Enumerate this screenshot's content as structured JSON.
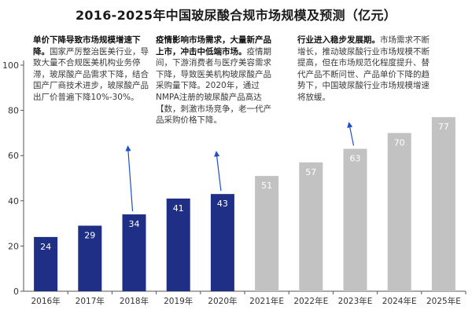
{
  "chart_data": {
    "type": "bar",
    "title": "2016-2025年中国玻尿酸合规市场规模及预测（亿元）",
    "categories": [
      "2016年",
      "2017年",
      "2018年",
      "2019年",
      "2020年",
      "2021年E",
      "2022年E",
      "2023年E",
      "2024年E",
      "2025年E"
    ],
    "values": [
      24,
      29,
      34,
      41,
      43,
      51,
      57,
      63,
      70,
      77
    ],
    "ylim": [
      0,
      100
    ],
    "yticks": [
      0,
      20,
      40,
      60,
      80,
      100
    ],
    "grid": false,
    "colors": {
      "actual": "#1f2f86",
      "forecast": "#c2c2c2",
      "arrow": "#1e4fc9",
      "axis": "#555555"
    },
    "annotations": [
      {
        "heading": "单价下降导致市场规模增速下降。",
        "body": "国家严厉整治医美行业，导致大量不合规医美机构业务停滞，玻尿酸产品需求下降，结合国产厂商技术进步，玻尿酸产品出厂价普遍下降10%-30%。"
      },
      {
        "heading": "疫情影响市场需求，大量新产品上市，冲击中低端市场。",
        "body": "疫情期间，下游消费者与医疗美容需求下降，导致医美机构玻尿酸产品采购量下降。2020年，通过NMPA注册的玻尿酸产品高达【数，刺激市场竞争，老一代产品采购价格下降。"
      },
      {
        "heading": "行业进入稳步发展期。",
        "body": "市场需求不断增长，推动玻尿酸行业市场规模不断提高，但在市场规范化程度提升、替代产品不断问世、产品单价下降的趋势下，中国玻尿酸行业市场规模增速将放缓。"
      }
    ]
  }
}
